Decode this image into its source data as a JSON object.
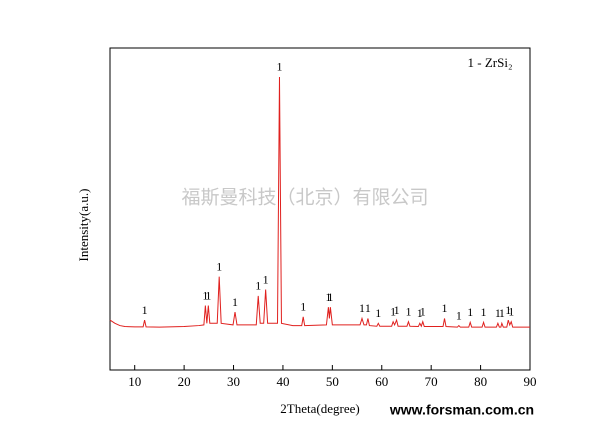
{
  "chart_data": {
    "type": "line",
    "x_label": "2Theta(degree)",
    "y_label": "Intensity(a.u.)",
    "legend_text": "1 - ZrSi₂",
    "watermark": "福斯曼科技（北京）有限公司",
    "website": "www.forsman.com.cn",
    "xlim": [
      5,
      90
    ],
    "xticks": [
      10,
      20,
      30,
      40,
      50,
      60,
      70,
      80,
      90
    ],
    "ylim": [
      0,
      100
    ],
    "x": [
      5,
      6,
      7,
      8,
      10,
      11.7,
      12.0,
      12.3,
      15,
      20,
      23,
      24.0,
      24.3,
      24.6,
      24.9,
      25.2,
      26.7,
      27.1,
      27.5,
      29.9,
      30.3,
      30.7,
      34.6,
      35.0,
      35.4,
      36.1,
      36.5,
      36.9,
      38.9,
      39.3,
      39.7,
      42,
      43.8,
      44.1,
      44.4,
      48.8,
      49.2,
      49.4,
      49.6,
      50.0,
      55.6,
      56.0,
      56.4,
      56.9,
      57.2,
      57.5,
      59.0,
      59.3,
      59.6,
      62.0,
      62.3,
      62.6,
      63.0,
      63.3,
      65.1,
      65.4,
      65.7,
      67.4,
      67.7,
      68.0,
      68.3,
      68.6,
      72.4,
      72.7,
      73.0,
      75.3,
      75.6,
      75.9,
      77.6,
      77.9,
      78.2,
      80.3,
      80.6,
      80.9,
      83.2,
      83.5,
      83.8,
      84.1,
      84.3,
      84.6,
      85.3,
      85.6,
      85.9,
      86.2,
      86.5,
      90
    ],
    "series": [
      {
        "name": "ZrSi2",
        "color": "#e0201e",
        "values": [
          15.5,
          14.5,
          13.8,
          13.5,
          13.4,
          13.4,
          15.5,
          13.4,
          13.3,
          13.5,
          13.8,
          14,
          20,
          14.5,
          20,
          14.5,
          14.5,
          29,
          14.5,
          14,
          18,
          14,
          14,
          23,
          14.5,
          14.5,
          25,
          14.5,
          14.5,
          91,
          14.5,
          13.8,
          13.8,
          16.5,
          13.8,
          14,
          19.5,
          16,
          19.5,
          14,
          14,
          16,
          14,
          14,
          16,
          13.8,
          13.6,
          14.5,
          13.6,
          13.6,
          15,
          14,
          15.5,
          13.6,
          13.6,
          15,
          13.6,
          13.5,
          14.5,
          13.6,
          15,
          13.5,
          13.5,
          16,
          13.5,
          13.3,
          13.8,
          13.3,
          13.3,
          14.8,
          13.3,
          13.3,
          14.8,
          13.3,
          13.3,
          14.5,
          13.3,
          13.3,
          14.5,
          13.3,
          13.3,
          15.5,
          14,
          15,
          13.3,
          13.3
        ]
      }
    ],
    "annotations": [
      {
        "text": "1",
        "x": 12.0
      },
      {
        "text": "1",
        "x": 24.3
      },
      {
        "text": "1",
        "x": 24.9
      },
      {
        "text": "1",
        "x": 27.1
      },
      {
        "text": "1",
        "x": 30.3
      },
      {
        "text": "1",
        "x": 35.0
      },
      {
        "text": "1",
        "x": 36.5
      },
      {
        "text": "1",
        "x": 39.3
      },
      {
        "text": "1",
        "x": 44.1
      },
      {
        "text": "1",
        "x": 49.2
      },
      {
        "text": "1",
        "x": 49.6
      },
      {
        "text": "1",
        "x": 56.0
      },
      {
        "text": "1",
        "x": 57.2
      },
      {
        "text": "1",
        "x": 59.3
      },
      {
        "text": "1",
        "x": 62.3
      },
      {
        "text": "1",
        "x": 63.0
      },
      {
        "text": "1",
        "x": 65.4
      },
      {
        "text": "1",
        "x": 67.7
      },
      {
        "text": "1",
        "x": 68.3
      },
      {
        "text": "1",
        "x": 72.7
      },
      {
        "text": "1",
        "x": 75.6
      },
      {
        "text": "1",
        "x": 77.9
      },
      {
        "text": "1",
        "x": 80.6
      },
      {
        "text": "1",
        "x": 83.5
      },
      {
        "text": "1",
        "x": 84.3
      },
      {
        "text": "1",
        "x": 85.6
      },
      {
        "text": "1",
        "x": 86.2
      }
    ]
  }
}
